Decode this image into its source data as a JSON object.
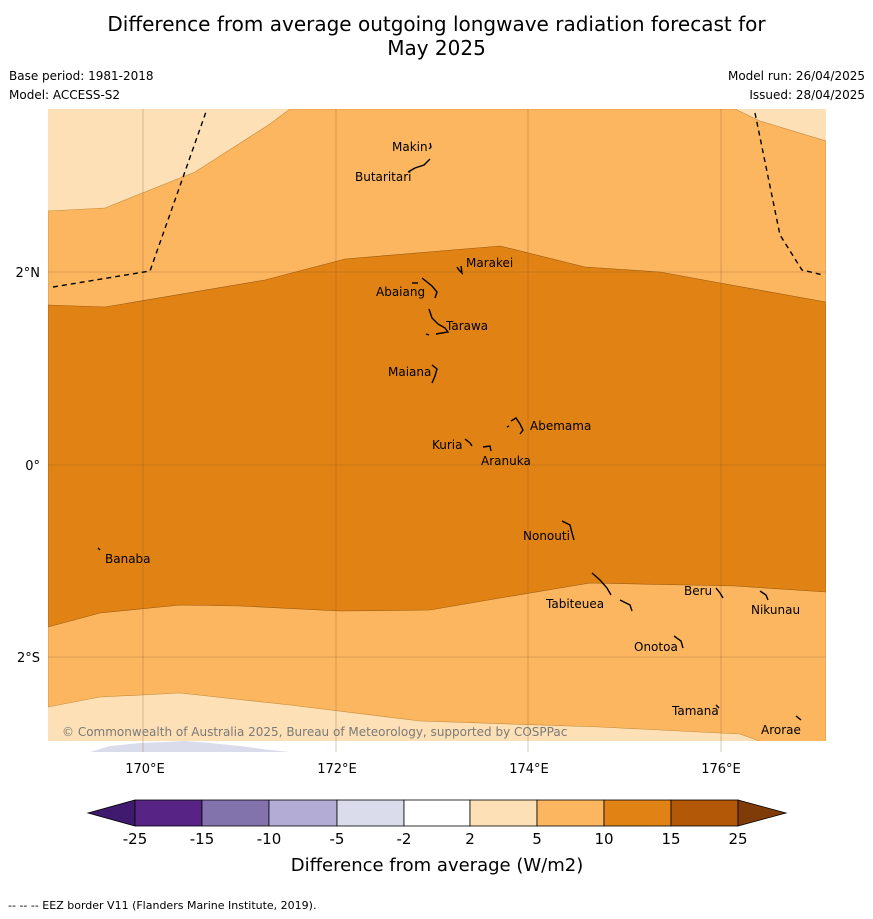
{
  "title_line1": "Difference from average outgoing longwave radiation forecast for",
  "title_line2": "May 2025",
  "meta_left": {
    "base_period": "Base period: 1981-2018",
    "model": "Model: ACCESS-S2"
  },
  "meta_right": {
    "model_run": "Model run: 26/04/2025",
    "issued": "Issued: 28/04/2025"
  },
  "map": {
    "lon_labels": [
      "170°E",
      "172°E",
      "174°E",
      "176°E"
    ],
    "lat_labels": [
      "2°N",
      "0°",
      "2°S"
    ],
    "copyright": "© Commonwealth of Australia 2025, Bureau of Meteorology, supported by COSPPac",
    "islands": {
      "makin": "Makin",
      "butaritari": "Butaritari",
      "marakei": "Marakei",
      "abaiang": "Abaiang",
      "tarawa": "Tarawa",
      "maiana": "Maiana",
      "abemama": "Abemama",
      "kuria": "Kuria",
      "aranuka": "Aranuka",
      "nonouti": "Nonouti",
      "banaba": "Banaba",
      "tabiteuea": "Tabiteuea",
      "beru": "Beru",
      "nikunau": "Nikunau",
      "onotoa": "Onotoa",
      "tamana": "Tamana",
      "arorae": "Arorae"
    }
  },
  "colorbar": {
    "ticks": [
      "-25",
      "-15",
      "-10",
      "-5",
      "-2",
      "2",
      "5",
      "10",
      "15",
      "25"
    ],
    "colors": [
      "#3f1a6e",
      "#572485",
      "#8373ad",
      "#b3acd4",
      "#dadbeb",
      "#ffffff",
      "#fde0b5",
      "#fbb65f",
      "#e08214",
      "#b35806",
      "#7f3b08"
    ],
    "label": "Difference from average (W/m2)"
  },
  "footer": "--  --  -- EEZ border V11 (Flanders Marine Institute, 2019)."
}
